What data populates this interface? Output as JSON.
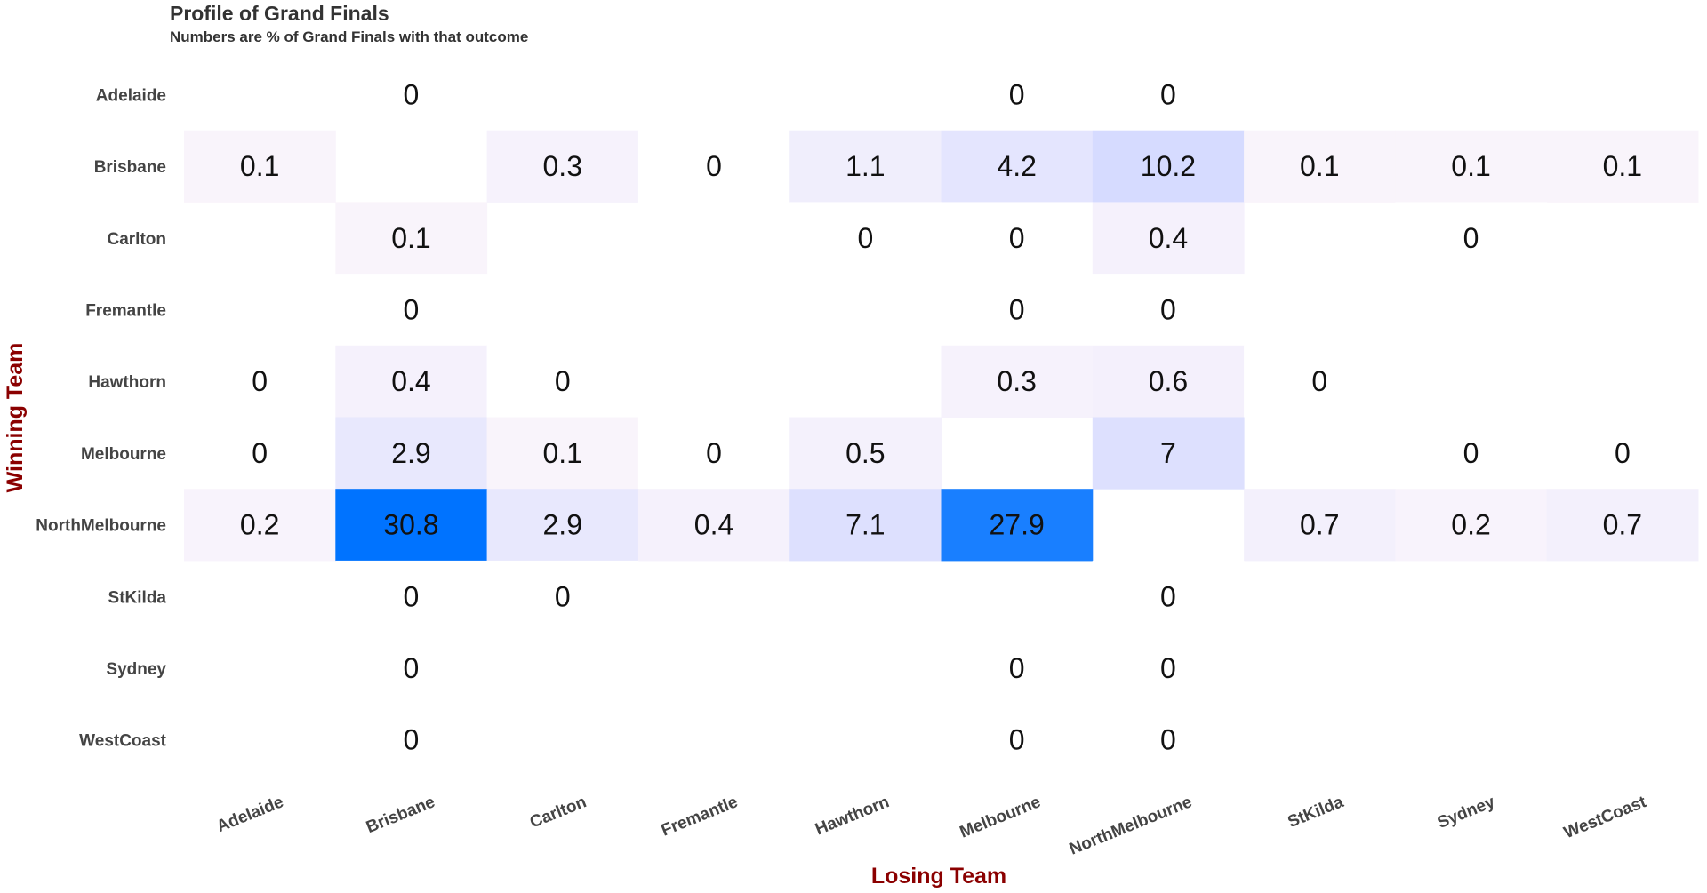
{
  "title": "Profile of Grand Finals",
  "subtitle": "Numbers are % of Grand Finals with that outcome",
  "chart_data": {
    "type": "heatmap",
    "title": "Profile of Grand Finals",
    "subtitle": "Numbers are % of Grand Finals with that outcome",
    "xlabel": "Losing Team",
    "ylabel": "Winning Team",
    "x_categories": [
      "Adelaide",
      "Brisbane",
      "Carlton",
      "Fremantle",
      "Hawthorn",
      "Melbourne",
      "NorthMelbourne",
      "StKilda",
      "Sydney",
      "WestCoast"
    ],
    "y_categories": [
      "Adelaide",
      "Brisbane",
      "Carlton",
      "Fremantle",
      "Hawthorn",
      "Melbourne",
      "NorthMelbourne",
      "StKilda",
      "Sydney",
      "WestCoast"
    ],
    "values": [
      [
        null,
        0,
        null,
        null,
        null,
        0,
        0,
        null,
        null,
        null
      ],
      [
        0.1,
        null,
        0.3,
        0,
        1.1,
        4.2,
        10.2,
        0.1,
        0.1,
        0.1
      ],
      [
        null,
        0.1,
        null,
        null,
        0,
        0,
        0.4,
        null,
        0,
        null
      ],
      [
        null,
        0,
        null,
        null,
        null,
        0,
        0,
        null,
        null,
        null
      ],
      [
        0,
        0.4,
        0,
        null,
        null,
        0.3,
        0.6,
        0,
        null,
        null
      ],
      [
        0,
        2.9,
        0.1,
        0,
        0.5,
        null,
        7,
        null,
        0,
        0
      ],
      [
        0.2,
        30.8,
        2.9,
        0.4,
        7.1,
        27.9,
        null,
        0.7,
        0.2,
        0.7
      ],
      [
        null,
        0,
        0,
        null,
        null,
        null,
        0,
        null,
        null,
        null
      ],
      [
        null,
        0,
        null,
        null,
        null,
        0,
        0,
        null,
        null,
        null
      ],
      [
        null,
        0,
        null,
        null,
        null,
        0,
        0,
        null,
        null,
        null
      ]
    ],
    "color_scale": {
      "low": "#fdf7fb",
      "mid": "#d6dbff",
      "high": "#0073ff",
      "max_value": 30.8
    }
  }
}
